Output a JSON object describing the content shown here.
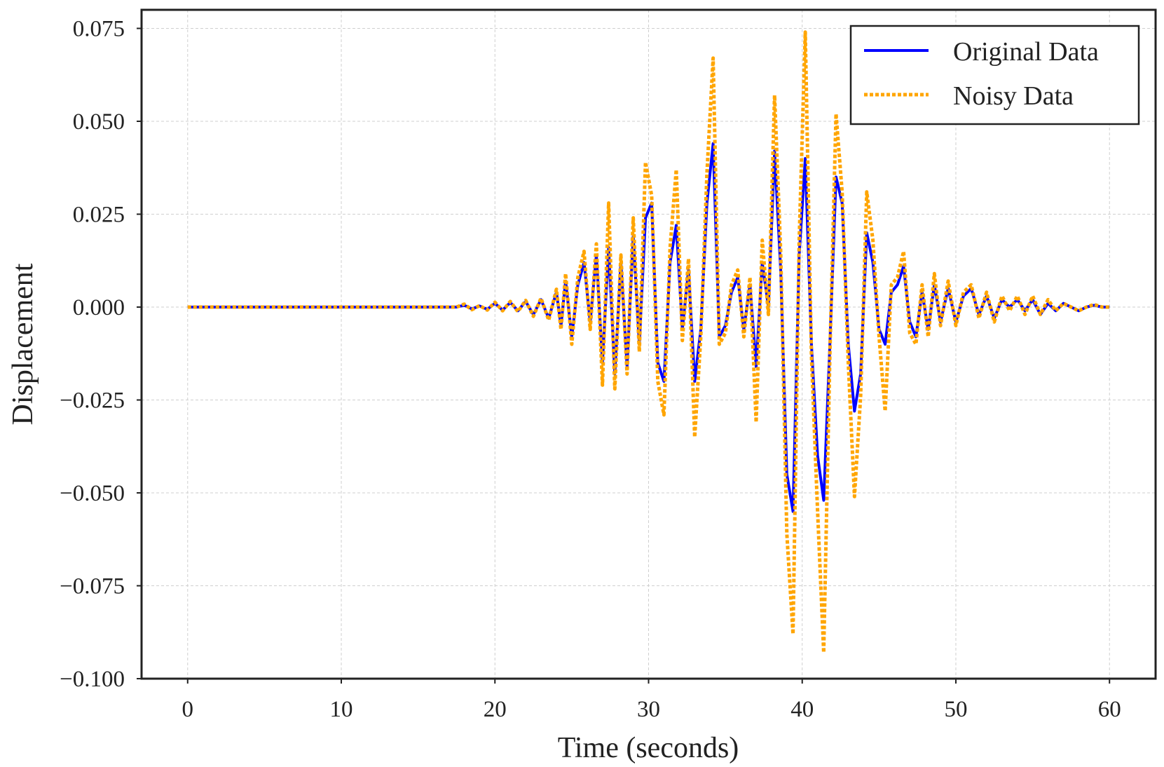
{
  "chart_data": {
    "type": "line",
    "title": "",
    "xlabel": "Time (seconds)",
    "ylabel": "Displacement",
    "xlim": [
      -3,
      63
    ],
    "ylim": [
      -0.1,
      0.08
    ],
    "grid": true,
    "legend_position": "top-right",
    "x_ticks": [
      0,
      10,
      20,
      30,
      40,
      50,
      60
    ],
    "x_tick_labels": [
      "0",
      "10",
      "20",
      "30",
      "40",
      "50",
      "60"
    ],
    "y_ticks": [
      0.075,
      0.05,
      0.025,
      0.0,
      -0.025,
      -0.05,
      -0.075,
      -0.1
    ],
    "y_tick_labels": [
      "0.075",
      "0.050",
      "0.025",
      "0.000",
      "−0.025",
      "−0.050",
      "−0.075",
      "−0.100"
    ],
    "colors": {
      "original": "#0000ff",
      "noisy": "#ffa500",
      "axes": "#222222",
      "grid": "#cfcfcf"
    },
    "series": [
      {
        "name": "Original Data",
        "style": "solid",
        "x": [
          0,
          17.5,
          18,
          18.5,
          19,
          19.5,
          20,
          20.5,
          21,
          21.5,
          22,
          22.5,
          23,
          23.5,
          24,
          24.3,
          24.6,
          25,
          25.4,
          25.8,
          26.2,
          26.6,
          27.0,
          27.4,
          27.8,
          28.2,
          28.6,
          29.0,
          29.4,
          29.8,
          30.2,
          30.6,
          31.0,
          31.4,
          31.8,
          32.2,
          32.6,
          33.0,
          33.4,
          33.8,
          34.2,
          34.6,
          35.0,
          35.4,
          35.8,
          36.2,
          36.6,
          37.0,
          37.4,
          37.8,
          38.2,
          38.6,
          39.0,
          39.4,
          39.8,
          40.2,
          40.6,
          41.0,
          41.4,
          41.8,
          42.2,
          42.6,
          43.0,
          43.4,
          43.8,
          44.2,
          44.6,
          45.0,
          45.4,
          45.8,
          46.2,
          46.6,
          47.0,
          47.4,
          47.8,
          48.2,
          48.6,
          49.0,
          49.5,
          50.0,
          50.5,
          51.0,
          51.5,
          52.0,
          52.5,
          53.0,
          53.5,
          54.0,
          54.5,
          55.0,
          55.5,
          56.0,
          56.5,
          57.0,
          57.5,
          58.0,
          58.5,
          59.0,
          59.5,
          60.0
        ],
        "y": [
          0,
          0,
          0.0005,
          -0.0005,
          0.0003,
          -0.0006,
          0.001,
          -0.0008,
          0.0012,
          -0.001,
          0.0015,
          -0.002,
          0.002,
          -0.003,
          0.004,
          -0.005,
          0.007,
          -0.008,
          0.006,
          0.012,
          -0.004,
          0.014,
          -0.015,
          0.016,
          -0.018,
          0.012,
          -0.016,
          0.019,
          -0.01,
          0.024,
          0.028,
          -0.015,
          -0.02,
          0.012,
          0.022,
          -0.006,
          0.01,
          -0.02,
          -0.006,
          0.028,
          0.044,
          -0.008,
          -0.005,
          0.004,
          0.008,
          -0.006,
          0.006,
          -0.016,
          0.012,
          0.0,
          0.042,
          0.01,
          -0.045,
          -0.055,
          0.014,
          0.04,
          -0.01,
          -0.04,
          -0.052,
          -0.01,
          0.035,
          0.028,
          -0.01,
          -0.028,
          -0.018,
          0.02,
          0.012,
          -0.006,
          -0.01,
          0.004,
          0.006,
          0.011,
          -0.004,
          -0.008,
          0.004,
          -0.006,
          0.006,
          -0.004,
          0.005,
          -0.004,
          0.003,
          0.005,
          -0.002,
          0.003,
          -0.003,
          0.002,
          0.0,
          0.002,
          -0.001,
          0.002,
          -0.002,
          0.001,
          -0.001,
          0.001,
          0.0,
          -0.001,
          0.0,
          0.0005,
          0.0,
          0.0
        ]
      },
      {
        "name": "Noisy Data",
        "style": "dotted",
        "x": [
          0,
          17.5,
          18,
          18.5,
          19,
          19.5,
          20,
          20.5,
          21,
          21.5,
          22,
          22.5,
          23,
          23.5,
          24,
          24.3,
          24.6,
          25,
          25.4,
          25.8,
          26.2,
          26.6,
          27.0,
          27.4,
          27.8,
          28.2,
          28.6,
          29.0,
          29.4,
          29.8,
          30.2,
          30.6,
          31.0,
          31.4,
          31.8,
          32.2,
          32.6,
          33.0,
          33.4,
          33.8,
          34.2,
          34.6,
          35.0,
          35.4,
          35.8,
          36.2,
          36.6,
          37.0,
          37.4,
          37.8,
          38.2,
          38.6,
          39.0,
          39.4,
          39.8,
          40.2,
          40.6,
          41.0,
          41.4,
          41.8,
          42.2,
          42.6,
          43.0,
          43.4,
          43.8,
          44.2,
          44.6,
          45.0,
          45.4,
          45.8,
          46.2,
          46.6,
          47.0,
          47.4,
          47.8,
          48.2,
          48.6,
          49.0,
          49.5,
          50.0,
          50.5,
          51.0,
          51.5,
          52.0,
          52.5,
          53.0,
          53.5,
          54.0,
          54.5,
          55.0,
          55.5,
          56.0,
          56.5,
          57.0,
          57.5,
          58.0,
          58.5,
          59.0,
          59.5,
          60.0
        ],
        "y": [
          0,
          0,
          0.0008,
          -0.0007,
          0.0004,
          -0.0008,
          0.0013,
          -0.001,
          0.0015,
          -0.0012,
          0.0018,
          -0.0025,
          0.0024,
          -0.0035,
          0.0048,
          -0.006,
          0.009,
          -0.01,
          0.008,
          0.015,
          -0.006,
          0.017,
          -0.021,
          0.028,
          -0.022,
          0.014,
          -0.018,
          0.024,
          -0.012,
          0.039,
          0.03,
          -0.02,
          -0.029,
          0.016,
          0.037,
          -0.009,
          0.013,
          -0.035,
          -0.008,
          0.036,
          0.067,
          -0.01,
          -0.007,
          0.006,
          0.01,
          -0.008,
          0.008,
          -0.031,
          0.018,
          -0.002,
          0.057,
          0.015,
          -0.061,
          -0.088,
          0.018,
          0.074,
          -0.013,
          -0.055,
          -0.093,
          -0.013,
          0.052,
          0.031,
          -0.015,
          -0.051,
          -0.024,
          0.031,
          0.018,
          -0.008,
          -0.028,
          0.006,
          0.008,
          0.015,
          -0.007,
          -0.01,
          0.006,
          -0.008,
          0.009,
          -0.005,
          0.007,
          -0.005,
          0.004,
          0.006,
          -0.003,
          0.004,
          -0.004,
          0.003,
          -0.001,
          0.003,
          -0.002,
          0.003,
          -0.002,
          0.002,
          -0.001,
          0.001,
          0.0,
          -0.001,
          0.0,
          0.0007,
          0.0,
          0.0
        ]
      }
    ]
  }
}
